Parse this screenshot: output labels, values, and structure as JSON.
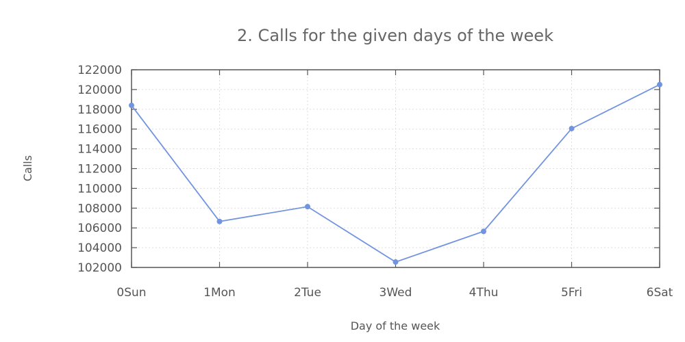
{
  "chart_data": {
    "type": "line",
    "title": "2. Calls for the given days of the week",
    "xlabel": "Day of the week",
    "ylabel": "Calls",
    "categories": [
      "0Sun",
      "1Mon",
      "2Tue",
      "3Wed",
      "4Thu",
      "5Fri",
      "6Sat"
    ],
    "series": [
      {
        "values": [
          118400,
          106650,
          108150,
          102550,
          105650,
          116050,
          120500
        ]
      }
    ],
    "ylim": [
      102000,
      122000
    ],
    "yticks": [
      102000,
      104000,
      106000,
      108000,
      110000,
      112000,
      114000,
      116000,
      118000,
      120000,
      122000
    ],
    "grid": true,
    "colors": {
      "line": "#7193e0",
      "axes": "#555555",
      "grid": "#dddddd"
    }
  }
}
